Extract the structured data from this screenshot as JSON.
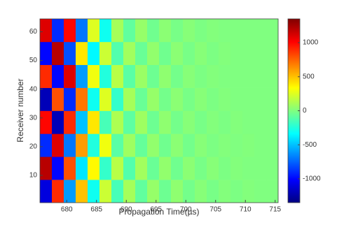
{
  "chart_data": {
    "type": "heatmap",
    "xlabel": "Propagation Time(µs)",
    "ylabel": "Receiver number",
    "xlim": [
      675.5,
      715.5
    ],
    "xticks": [
      680,
      685,
      690,
      695,
      700,
      705,
      710,
      715
    ],
    "ylim": [
      0.5,
      64.5
    ],
    "yticks": [
      10,
      20,
      30,
      40,
      50,
      60
    ],
    "x_edges": [
      675.5,
      677.5,
      679.5,
      681.5,
      683.5,
      685.5,
      687.5,
      689.5,
      691.5,
      693.5,
      695.5,
      697.5,
      699.5,
      701.5,
      703.5,
      705.5,
      707.5,
      709.5,
      711.5,
      713.5,
      715.5
    ],
    "y_edges": [
      0.5,
      8.5,
      16.5,
      24.5,
      32.5,
      40.5,
      48.5,
      56.5,
      64.5
    ],
    "z": [
      [
        -1100,
        900,
        -600,
        500,
        -300,
        200,
        -150,
        100,
        -80,
        60,
        -50,
        40,
        -30,
        20,
        -20,
        10,
        -10,
        10,
        0,
        0
      ],
      [
        1200,
        -1000,
        800,
        -400,
        350,
        -200,
        150,
        -120,
        90,
        -60,
        50,
        -40,
        30,
        -20,
        20,
        -10,
        10,
        0,
        0,
        0
      ],
      [
        -900,
        1100,
        -700,
        600,
        -250,
        300,
        -100,
        80,
        -70,
        50,
        -40,
        30,
        -30,
        20,
        -10,
        10,
        0,
        10,
        0,
        0
      ],
      [
        1000,
        -1200,
        900,
        -500,
        400,
        -150,
        120,
        -90,
        80,
        -50,
        40,
        -30,
        20,
        -20,
        10,
        -10,
        10,
        0,
        0,
        0
      ],
      [
        -1200,
        800,
        -900,
        700,
        -300,
        250,
        -200,
        100,
        -60,
        60,
        -30,
        30,
        -20,
        20,
        -10,
        10,
        0,
        0,
        0,
        0
      ],
      [
        900,
        -1000,
        1100,
        -600,
        300,
        -250,
        150,
        -100,
        70,
        -50,
        40,
        -30,
        20,
        -10,
        10,
        0,
        0,
        0,
        0,
        0
      ],
      [
        -1000,
        1200,
        -800,
        400,
        -350,
        200,
        -120,
        90,
        -60,
        50,
        -40,
        30,
        -20,
        20,
        -10,
        10,
        0,
        0,
        0,
        0
      ],
      [
        1100,
        -900,
        1000,
        -700,
        250,
        -300,
        100,
        -80,
        60,
        -40,
        30,
        -20,
        20,
        -10,
        10,
        0,
        0,
        0,
        0,
        0
      ]
    ],
    "colormap": "jet",
    "clim": [
      -1350,
      1350
    ],
    "cticks": [
      -1000,
      -500,
      0,
      500,
      1000
    ]
  }
}
